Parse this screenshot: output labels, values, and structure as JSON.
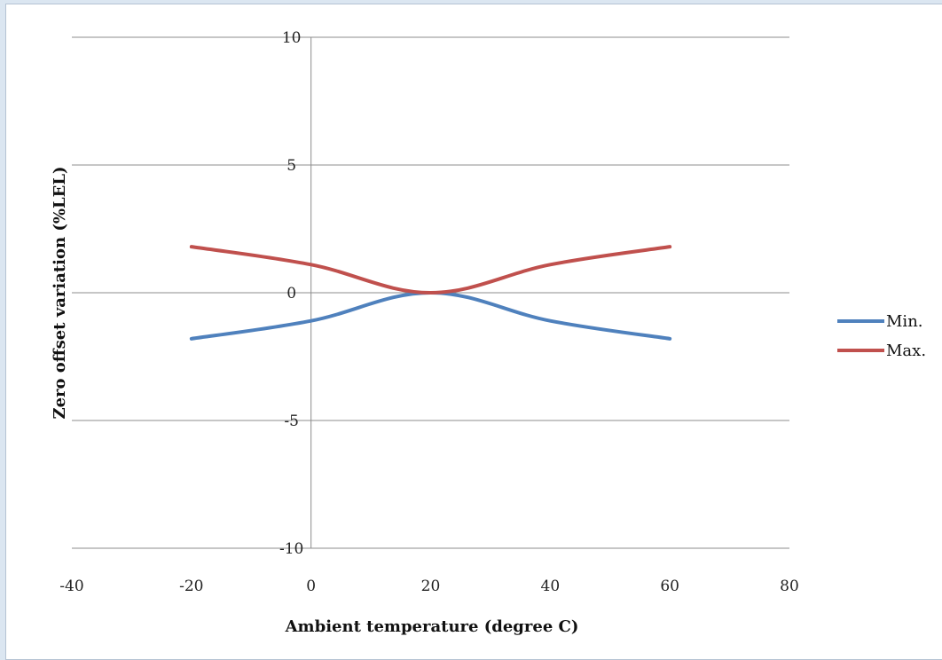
{
  "chart_data": {
    "type": "line",
    "xlabel": "Ambient temperature (degree C)",
    "ylabel": "Zero offset variation (%LEL)",
    "xlim": [
      -40,
      80
    ],
    "ylim": [
      -10,
      10
    ],
    "x_ticks": [
      "-40",
      "-20",
      "0",
      "20",
      "40",
      "60",
      "80"
    ],
    "y_ticks": [
      "10",
      "5",
      "0",
      "-5",
      "-10"
    ],
    "grid": "horizontal",
    "legend_position": "right",
    "x": [
      -20,
      0,
      20,
      40,
      60
    ],
    "series": [
      {
        "name": "Min.",
        "color": "#4f81bd",
        "values": [
          -1.8,
          -1.1,
          0,
          -1.1,
          -1.8
        ]
      },
      {
        "name": "Max.",
        "color": "#c0504d",
        "values": [
          1.8,
          1.1,
          0,
          1.1,
          1.8
        ]
      }
    ]
  }
}
